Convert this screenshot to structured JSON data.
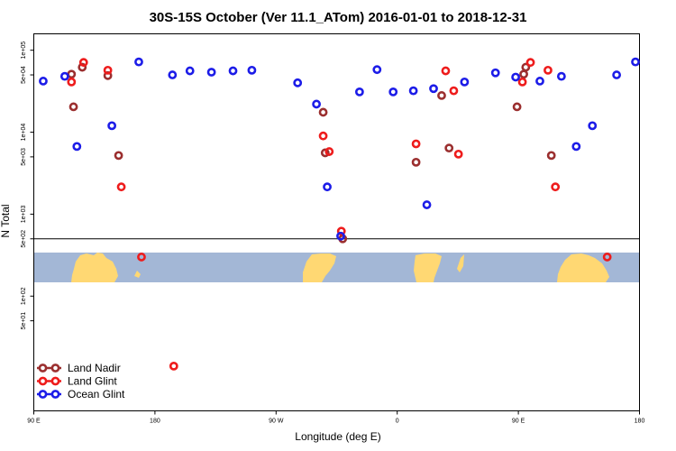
{
  "chart_data": {
    "type": "scatter",
    "title": "30S-15S October (Ver 11.1_ATom)   2016-01-01 to 2018-12-31",
    "xlabel": "Longitude (deg E)",
    "ylabel": "N Total",
    "xlim": [
      90,
      540
    ],
    "ylim_log10": [
      0.6,
      5.2
    ],
    "y_scale": "log",
    "x_ticks": [
      {
        "value": 90,
        "label": "90 E"
      },
      {
        "value": 180,
        "label": "180"
      },
      {
        "value": 270,
        "label": "90 W"
      },
      {
        "value": 360,
        "label": "0"
      },
      {
        "value": 450,
        "label": "90 E"
      },
      {
        "value": 540,
        "label": "180"
      }
    ],
    "y_ticks": [
      {
        "value": 100000,
        "label": "1e+05"
      },
      {
        "value": 50000,
        "label": "5e+04"
      },
      {
        "value": 10000,
        "label": "1e+04"
      },
      {
        "value": 5000,
        "label": "5e+03"
      },
      {
        "value": 1000,
        "label": "1e+03"
      },
      {
        "value": 500,
        "label": "5e+02"
      },
      {
        "value": 100,
        "label": "1e+02"
      },
      {
        "value": 50,
        "label": "5e+01"
      }
    ],
    "reference_line": 500,
    "legend_position": "bottom-left",
    "series": [
      {
        "name": "Land Nadir",
        "color": "#9b2f2f",
        "points": [
          [
            118,
            51000
          ],
          [
            119.5,
            20400
          ],
          [
            126,
            62000
          ],
          [
            145,
            49000
          ],
          [
            153,
            5200
          ],
          [
            305,
            17500
          ],
          [
            306.5,
            5600
          ],
          [
            319.5,
            500
          ],
          [
            374,
            4300
          ],
          [
            393,
            28000
          ],
          [
            398.5,
            6400
          ],
          [
            449,
            20400
          ],
          [
            454,
            51000
          ],
          [
            455.5,
            62000
          ],
          [
            474.5,
            5200
          ]
        ]
      },
      {
        "name": "Land Glint",
        "color": "#ee1c1c",
        "points": [
          [
            118,
            41000
          ],
          [
            127,
            71000
          ],
          [
            145,
            57000
          ],
          [
            155,
            2150
          ],
          [
            170,
            300
          ],
          [
            194,
            14
          ],
          [
            305,
            9000
          ],
          [
            309.5,
            5800
          ],
          [
            318.5,
            620
          ],
          [
            374,
            7200
          ],
          [
            396,
            56000
          ],
          [
            402,
            32000
          ],
          [
            405.5,
            5400
          ],
          [
            453,
            41000
          ],
          [
            459,
            71000
          ],
          [
            472,
            57000
          ],
          [
            477.5,
            2150
          ],
          [
            516,
            300
          ]
        ]
      },
      {
        "name": "Ocean Glint",
        "color": "#1c1ce8",
        "points": [
          [
            97,
            42000
          ],
          [
            113,
            48000
          ],
          [
            122,
            6700
          ],
          [
            148,
            12000
          ],
          [
            168,
            72000
          ],
          [
            193,
            50000
          ],
          [
            206,
            56000
          ],
          [
            222,
            54000
          ],
          [
            238,
            56000
          ],
          [
            252,
            57000
          ],
          [
            286,
            40000
          ],
          [
            300,
            22000
          ],
          [
            308,
            2150
          ],
          [
            318,
            540
          ],
          [
            332,
            31000
          ],
          [
            345,
            58000
          ],
          [
            357,
            31000
          ],
          [
            372,
            32000
          ],
          [
            382,
            1300
          ],
          [
            387,
            34000
          ],
          [
            410,
            41000
          ],
          [
            433,
            53000
          ],
          [
            448,
            47000
          ],
          [
            466,
            42000
          ],
          [
            482,
            48000
          ],
          [
            493,
            6700
          ],
          [
            505,
            12000
          ],
          [
            523,
            50000
          ],
          [
            537,
            72000
          ]
        ]
      }
    ],
    "map_band_colors": {
      "ocean": "#a3b7d6",
      "land": "#ffd873"
    }
  }
}
